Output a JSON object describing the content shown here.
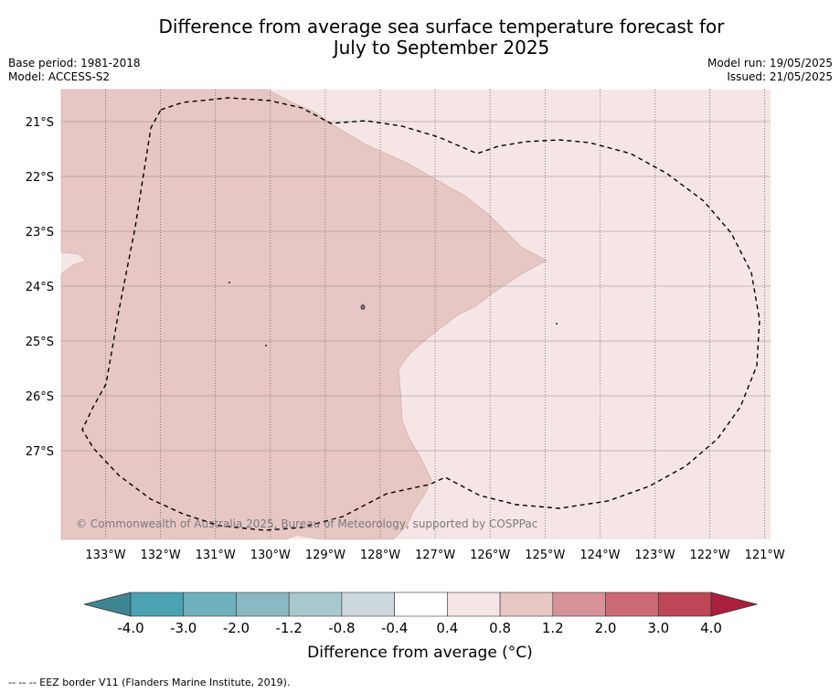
{
  "title_line1": "Difference from average sea surface temperature forecast for",
  "title_line2": "July to September 2025",
  "base_period": "Base period: 1981-2018",
  "model": "Model: ACCESS-S2",
  "model_run": "Model run: 19/05/2025",
  "issued": "Issued: 21/05/2025",
  "copyright": "© Commonwealth of Australia 2025, Bureau of Meteorology, supported by COSPPac",
  "lat_labels": [
    "21°S",
    "22°S",
    "23°S",
    "24°S",
    "25°S",
    "26°S",
    "27°S"
  ],
  "lon_labels": [
    "133°W",
    "132°W",
    "131°W",
    "130°W",
    "129°W",
    "128°W",
    "127°W",
    "126°W",
    "125°W",
    "124°W",
    "123°W",
    "122°W",
    "121°W"
  ],
  "colorbar": {
    "title": "Difference from average (°C)",
    "ticks": [
      "-4.0",
      "-3.0",
      "-2.0",
      "-1.2",
      "-0.8",
      "-0.4",
      "0.4",
      "0.8",
      "1.2",
      "2.0",
      "3.0",
      "4.0"
    ],
    "colors": [
      "#3e8593",
      "#4aa2b2",
      "#6eb0bd",
      "#8ab8c3",
      "#a9c8cd",
      "#cdd8dc",
      "#ffffff",
      "#f5e6e5",
      "#e7c7c3",
      "#d8929a",
      "#cb6a74",
      "#bd4756",
      "#aa1f3b"
    ]
  },
  "anomaly_classes": {
    "western_region": "0.8 to 1.2",
    "eastern_region": "0.4 to 0.8"
  },
  "footnote": "--  --  -- EEZ border V11 (Flanders Marine Institute, 2019)."
}
